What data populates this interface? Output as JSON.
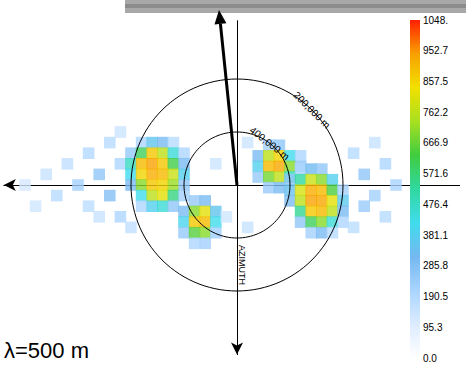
{
  "chart_data": {
    "type": "spectrum",
    "annotation": "λ=500 m",
    "axis_label": "AZIMUTH",
    "xlim": [
      -4.4,
      4.2
    ],
    "ylim": [
      -3.2,
      3.1
    ],
    "tick_labels": false,
    "rings": [
      {
        "radius": 2,
        "label": "200,000 m"
      },
      {
        "radius": 1,
        "label": "400,000 m"
      }
    ],
    "colorbar": {
      "range": [
        0,
        1048
      ],
      "ticks": [
        {
          "value": 0,
          "label": "0.0"
        },
        95.3,
        190.5,
        285.8,
        381.1,
        476.4,
        571.6,
        666.9,
        762.2,
        857.5,
        952.7,
        {
          "value": 1048,
          "label": "1048."
        }
      ]
    },
    "cells": [
      [
        -1.8,
        0.8,
        200
      ],
      [
        -1.6,
        0.8,
        350
      ],
      [
        -1.4,
        0.8,
        300
      ],
      [
        -1.2,
        0.8,
        180
      ],
      [
        -2.0,
        0.6,
        250
      ],
      [
        -1.8,
        0.6,
        600
      ],
      [
        -1.6,
        0.6,
        880
      ],
      [
        -1.4,
        0.6,
        760
      ],
      [
        -1.2,
        0.6,
        450
      ],
      [
        -1.0,
        0.6,
        200
      ],
      [
        -2.2,
        0.4,
        200
      ],
      [
        -2.0,
        0.4,
        480
      ],
      [
        -1.8,
        0.4,
        900
      ],
      [
        -1.6,
        0.4,
        940
      ],
      [
        -1.4,
        0.4,
        880
      ],
      [
        -1.2,
        0.4,
        620
      ],
      [
        -1.0,
        0.4,
        300
      ],
      [
        -2.0,
        0.2,
        420
      ],
      [
        -1.8,
        0.2,
        860
      ],
      [
        -1.6,
        0.2,
        920
      ],
      [
        -1.4,
        0.2,
        900
      ],
      [
        -1.2,
        0.2,
        780
      ],
      [
        -1.0,
        0.2,
        380
      ],
      [
        -2.0,
        0.0,
        300
      ],
      [
        -1.8,
        0.0,
        700
      ],
      [
        -1.6,
        0.0,
        880
      ],
      [
        -1.4,
        0.0,
        860
      ],
      [
        -1.2,
        0.0,
        720
      ],
      [
        -1.0,
        0.0,
        260
      ],
      [
        -1.8,
        -0.2,
        420
      ],
      [
        -1.6,
        -0.2,
        760
      ],
      [
        -1.4,
        -0.2,
        820
      ],
      [
        -1.2,
        -0.2,
        560
      ],
      [
        -1.0,
        -0.2,
        220
      ],
      [
        -1.8,
        -0.4,
        200
      ],
      [
        -1.6,
        -0.4,
        380
      ],
      [
        -1.4,
        -0.4,
        450
      ],
      [
        -1.2,
        -0.4,
        260
      ],
      [
        -0.8,
        -0.3,
        250
      ],
      [
        -0.6,
        -0.3,
        300
      ],
      [
        -1.0,
        -0.5,
        300
      ],
      [
        -0.8,
        -0.5,
        700
      ],
      [
        -0.6,
        -0.5,
        820
      ],
      [
        -0.4,
        -0.5,
        350
      ],
      [
        -1.0,
        -0.7,
        400
      ],
      [
        -0.8,
        -0.7,
        880
      ],
      [
        -0.6,
        -0.7,
        900
      ],
      [
        -0.4,
        -0.7,
        420
      ],
      [
        -1.0,
        -0.9,
        250
      ],
      [
        -0.8,
        -0.9,
        650
      ],
      [
        -0.6,
        -0.9,
        700
      ],
      [
        -0.4,
        -0.9,
        230
      ],
      [
        -0.8,
        -1.1,
        200
      ],
      [
        -0.6,
        -1.1,
        220
      ],
      [
        0.6,
        0.75,
        220
      ],
      [
        0.8,
        0.75,
        260
      ],
      [
        0.4,
        0.55,
        300
      ],
      [
        0.6,
        0.55,
        760
      ],
      [
        0.8,
        0.55,
        860
      ],
      [
        1.0,
        0.55,
        420
      ],
      [
        1.2,
        0.55,
        200
      ],
      [
        0.4,
        0.35,
        380
      ],
      [
        0.6,
        0.35,
        900
      ],
      [
        0.8,
        0.35,
        930
      ],
      [
        1.0,
        0.35,
        700
      ],
      [
        1.2,
        0.35,
        260
      ],
      [
        0.4,
        0.15,
        250
      ],
      [
        0.6,
        0.15,
        680
      ],
      [
        0.8,
        0.15,
        760
      ],
      [
        1.0,
        0.15,
        480
      ],
      [
        0.6,
        -0.05,
        240
      ],
      [
        0.8,
        -0.05,
        300
      ],
      [
        1.2,
        0.3,
        200
      ],
      [
        1.4,
        0.3,
        320
      ],
      [
        1.6,
        0.3,
        260
      ],
      [
        1.0,
        0.1,
        260
      ],
      [
        1.2,
        0.1,
        520
      ],
      [
        1.4,
        0.1,
        780
      ],
      [
        1.6,
        0.1,
        700
      ],
      [
        1.8,
        0.1,
        380
      ],
      [
        1.0,
        -0.1,
        340
      ],
      [
        1.2,
        -0.1,
        800
      ],
      [
        1.4,
        -0.1,
        920
      ],
      [
        1.6,
        -0.1,
        900
      ],
      [
        1.8,
        -0.1,
        640
      ],
      [
        2.0,
        -0.1,
        220
      ],
      [
        1.0,
        -0.3,
        300
      ],
      [
        1.2,
        -0.3,
        760
      ],
      [
        1.4,
        -0.3,
        940
      ],
      [
        1.6,
        -0.3,
        930
      ],
      [
        1.8,
        -0.3,
        820
      ],
      [
        2.0,
        -0.3,
        360
      ],
      [
        1.2,
        -0.5,
        540
      ],
      [
        1.4,
        -0.5,
        880
      ],
      [
        1.6,
        -0.5,
        900
      ],
      [
        1.8,
        -0.5,
        760
      ],
      [
        2.0,
        -0.5,
        300
      ],
      [
        1.2,
        -0.7,
        260
      ],
      [
        1.4,
        -0.7,
        600
      ],
      [
        1.6,
        -0.7,
        700
      ],
      [
        1.8,
        -0.7,
        450
      ],
      [
        2.0,
        -0.7,
        200
      ],
      [
        1.4,
        -0.9,
        220
      ],
      [
        1.6,
        -0.9,
        300
      ],
      [
        1.8,
        -0.9,
        180
      ],
      [
        -4.0,
        0.0,
        120
      ],
      [
        -3.8,
        -0.4,
        130
      ],
      [
        -3.6,
        0.2,
        150
      ],
      [
        -3.4,
        -0.2,
        180
      ],
      [
        -3.2,
        0.4,
        160
      ],
      [
        -3.0,
        0.0,
        220
      ],
      [
        -2.8,
        0.6,
        190
      ],
      [
        -2.8,
        -0.4,
        170
      ],
      [
        -2.6,
        0.2,
        260
      ],
      [
        -2.6,
        -0.6,
        150
      ],
      [
        -2.4,
        0.8,
        180
      ],
      [
        -2.4,
        -0.2,
        280
      ],
      [
        -2.2,
        -0.6,
        200
      ],
      [
        -2.2,
        1.0,
        140
      ],
      [
        -2.0,
        -0.8,
        160
      ],
      [
        -0.4,
        0.4,
        140
      ],
      [
        -0.2,
        -0.6,
        130
      ],
      [
        0.2,
        -0.8,
        150
      ],
      [
        0.2,
        0.8,
        140
      ],
      [
        2.2,
        0.6,
        180
      ],
      [
        2.2,
        -0.8,
        170
      ],
      [
        2.4,
        0.2,
        260
      ],
      [
        2.4,
        -0.4,
        240
      ],
      [
        2.6,
        0.8,
        150
      ],
      [
        2.6,
        -0.2,
        220
      ],
      [
        2.8,
        0.4,
        200
      ],
      [
        2.8,
        -0.6,
        180
      ],
      [
        3.0,
        0.0,
        210
      ]
    ]
  }
}
